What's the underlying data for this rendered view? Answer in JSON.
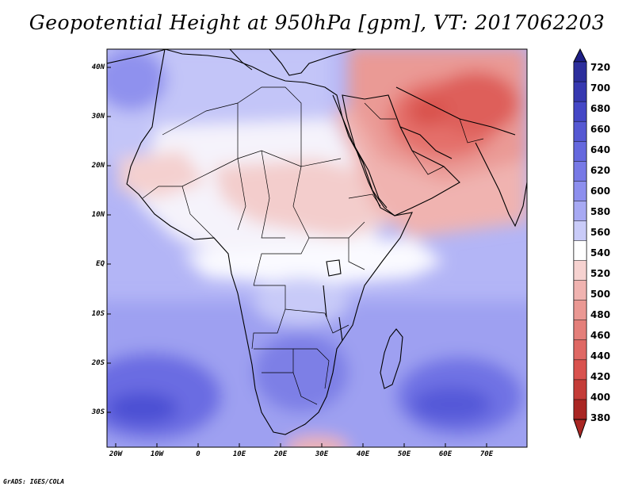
{
  "title": "Geopotential Height at 950hPa [gpm], VT: 2017062203",
  "footer": "GrADS: IGES/COLA",
  "map": {
    "lat_labels": [
      "40N",
      "30N",
      "20N",
      "10N",
      "EQ",
      "10S",
      "20S",
      "30S"
    ],
    "lon_labels": [
      "20W",
      "10W",
      "0",
      "10E",
      "20E",
      "30E",
      "40E",
      "50E",
      "60E",
      "70E"
    ],
    "colors": {
      "deep_blue": "#4b4fd3",
      "mid_blue": "#7e80ea",
      "light_blue": "#b3b5f6",
      "pale_blue": "#dadbfb",
      "white": "#ffffff",
      "pale_red": "#f6d2d0",
      "light_red": "#ee9f9b",
      "mid_red": "#e4706b",
      "deep_red": "#d94d49"
    }
  },
  "colorbar": {
    "labels": [
      "720",
      "700",
      "680",
      "660",
      "640",
      "620",
      "600",
      "580",
      "560",
      "540",
      "520",
      "500",
      "480",
      "460",
      "440",
      "420",
      "400",
      "380"
    ],
    "colors": [
      "#2c2e9c",
      "#3638b0",
      "#4447c6",
      "#5558d3",
      "#6568de",
      "#7779e6",
      "#8d8fee",
      "#a7a9f3",
      "#c9cbf8",
      "#ffffff",
      "#f6d2d0",
      "#f0b3b0",
      "#ea9893",
      "#e47f7a",
      "#df6864",
      "#d9524e",
      "#c43c38",
      "#a92623"
    ]
  }
}
